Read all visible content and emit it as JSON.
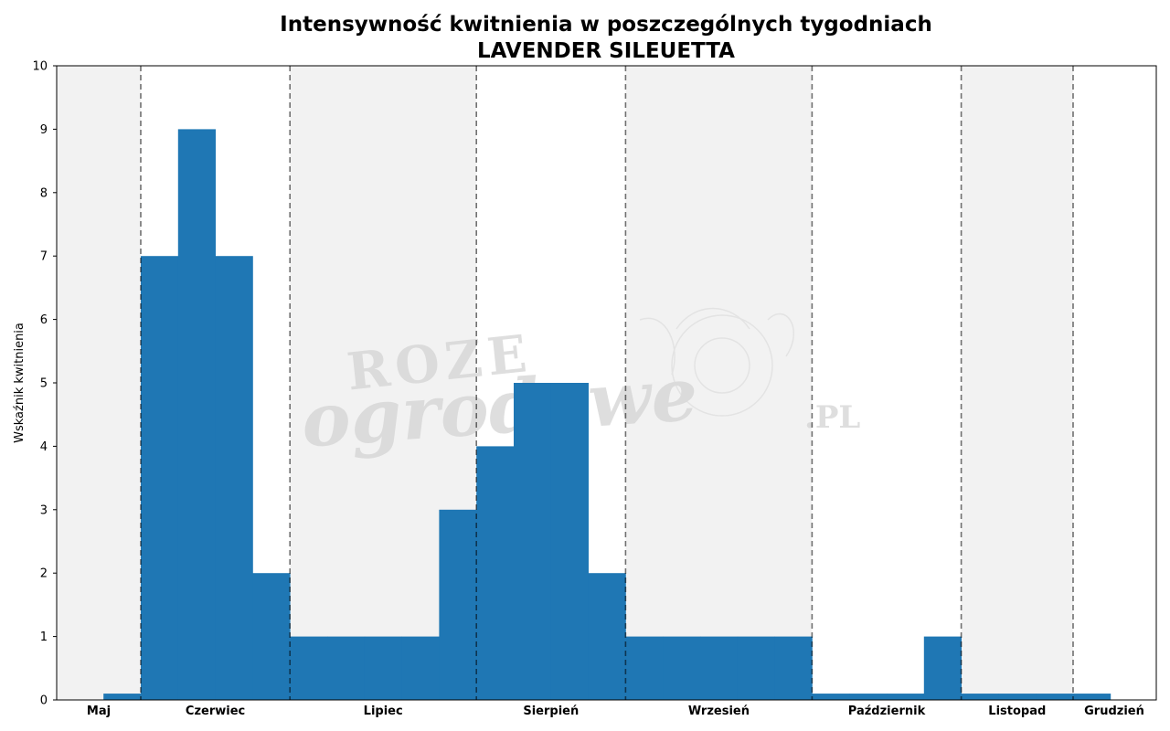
{
  "chart_data": {
    "type": "bar",
    "title": "Intensywność kwitnienia w poszczególnych tygodniach",
    "subtitle": "LAVENDER SILEUETTA",
    "xlabel": "",
    "ylabel": "Wskaźnik kwitnienia",
    "ylim": [
      0,
      10
    ],
    "yticks": [
      "0",
      "1",
      "2",
      "3",
      "4",
      "5",
      "6",
      "7",
      "8",
      "9",
      "10"
    ],
    "grid": false,
    "legend": "none",
    "bar_color": "#1f77b4",
    "band_color": "#f2f2f2",
    "months": [
      {
        "label": "Maj",
        "weeks": 2,
        "shaded": true
      },
      {
        "label": "Czerwiec",
        "weeks": 4,
        "shaded": false
      },
      {
        "label": "Lipiec",
        "weeks": 5,
        "shaded": true
      },
      {
        "label": "Sierpień",
        "weeks": 4,
        "shaded": false
      },
      {
        "label": "Wrzesień",
        "weeks": 5,
        "shaded": true
      },
      {
        "label": "Październik",
        "weeks": 4,
        "shaded": false
      },
      {
        "label": "Listopad",
        "weeks": 3,
        "shaded": true
      },
      {
        "label": "Grudzień",
        "weeks": 2,
        "shaded": false
      }
    ],
    "values": [
      0,
      0.1,
      7,
      9,
      7,
      2,
      1,
      1,
      1,
      1,
      3,
      4,
      5,
      5,
      2,
      1,
      1,
      1,
      1,
      1,
      0.1,
      0.1,
      0.1,
      1,
      0.1,
      0.1,
      0.1,
      0.1,
      0
    ]
  },
  "watermark": {
    "line1": "ROZE",
    "line2": "ogrodowe",
    "suffix": ".PL",
    "color": "#d4d4d4"
  }
}
